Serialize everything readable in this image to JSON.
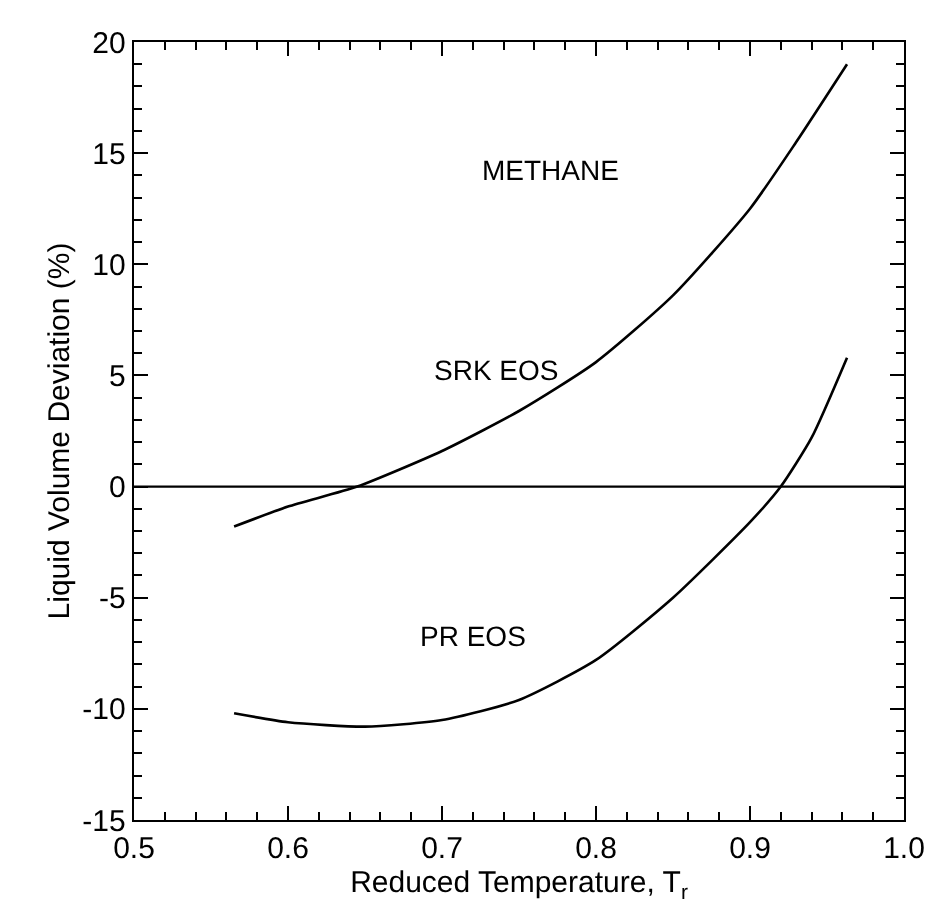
{
  "chart_data": {
    "type": "line",
    "xlabel": "Reduced Temperature, T$_{r}$",
    "ylabel": "Liquid Volume Deviation (%)",
    "series": [
      {
        "color": "#000000",
        "x": [
          0.565,
          0.6,
          0.645,
          0.7,
          0.75,
          0.8,
          0.85,
          0.9,
          0.93,
          0.963
        ],
        "values": [
          -1.8,
          -0.9,
          0,
          1.6,
          3.4,
          5.6,
          8.6,
          12.5,
          15.5,
          19
        ]
      },
      {
        "color": "#000000",
        "x": [
          0.565,
          0.6,
          0.65,
          0.7,
          0.75,
          0.8,
          0.85,
          0.9,
          0.92,
          0.94,
          0.963
        ],
        "values": [
          -10.2,
          -10.6,
          -10.8,
          -10.5,
          -9.6,
          -7.8,
          -5,
          -1.6,
          0,
          2.2,
          5.8
        ]
      }
    ],
    "xlim": [
      0.5,
      1.0
    ],
    "xticks": [
      0.5,
      0.6,
      0.7,
      0.8,
      0.9,
      {
        "value": 1.0,
        "label": "1.0"
      }
    ],
    "ylim": [
      -15,
      20
    ],
    "yticks": [
      -15,
      -10,
      -5,
      0,
      5,
      10,
      15,
      20
    ],
    "ref_lines": [
      {
        "axis": "y",
        "value": 0,
        "color": "#000000"
      }
    ],
    "annotations": [
      "METHANE",
      "SRK EOS",
      "PR EOS"
    ],
    "grid": false,
    "marker": "none",
    "line_style": "solid"
  }
}
